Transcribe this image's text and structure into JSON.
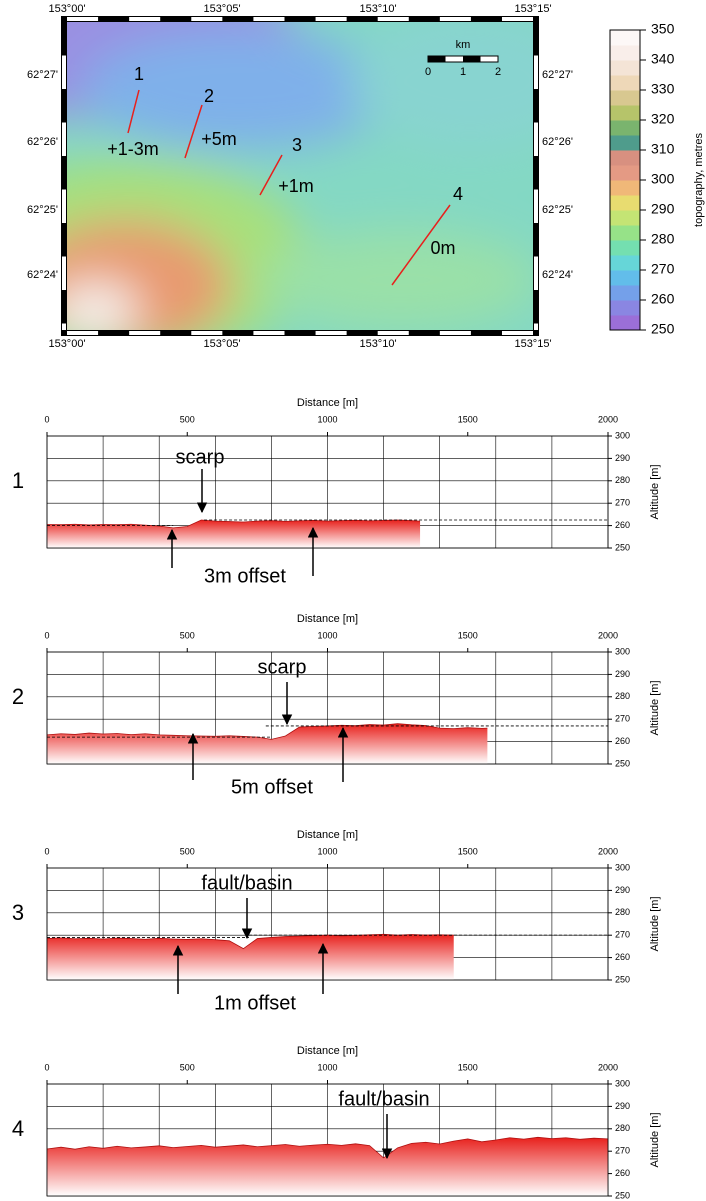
{
  "map": {
    "lon_ticks": [
      "153°00'",
      "153°05'",
      "153°10'",
      "153°15'"
    ],
    "lat_ticks": [
      "62°27'",
      "62°26'",
      "62°25'",
      "62°24'"
    ],
    "profiles": [
      {
        "label": "1",
        "offset": "+1-3m"
      },
      {
        "label": "2",
        "offset": "+5m"
      },
      {
        "label": "3",
        "offset": "+1m"
      },
      {
        "label": "4",
        "offset": "0m"
      }
    ],
    "scale_bar": {
      "unit": "km",
      "ticks": [
        "0",
        "1",
        "2"
      ]
    },
    "colorbar": {
      "label": "topography, metres",
      "lim": [
        250,
        350
      ],
      "ticks": [
        250,
        260,
        270,
        280,
        290,
        300,
        310,
        320,
        330,
        340,
        350
      ],
      "colormap": [
        "#9b6fd8",
        "#8a86e2",
        "#74a0ea",
        "#62bdea",
        "#66d6d8",
        "#74dfb0",
        "#96e288",
        "#c4e474",
        "#e8dc70",
        "#f0b878",
        "#e49a84",
        "#d89080",
        "#4f9c8c",
        "#7ab46e",
        "#b6c46a",
        "#d8c890",
        "#eed8b8",
        "#f4e4d6",
        "#f9eeea",
        "#fdf8f7"
      ]
    }
  },
  "chart_data": [
    {
      "type": "area",
      "panel": "1",
      "xlabel": "Distance [m]",
      "ylabel": "Altitude [m]",
      "color": "#e8201c",
      "xlim": [
        0,
        2000
      ],
      "ylim": [
        250,
        300
      ],
      "xticks": [
        0,
        500,
        1000,
        1500,
        2000
      ],
      "yticks": [
        250,
        260,
        270,
        280,
        290,
        300
      ],
      "xgrid": [
        0,
        200,
        400,
        600,
        800,
        1000,
        1200,
        1400,
        1600,
        1800,
        2000
      ],
      "x": [
        0,
        50,
        100,
        150,
        200,
        250,
        300,
        350,
        400,
        450,
        500,
        550,
        600,
        650,
        700,
        750,
        800,
        850,
        900,
        950,
        1000,
        1050,
        1100,
        1150,
        1200,
        1250,
        1300,
        1330
      ],
      "values": [
        260.5,
        260.4,
        260.6,
        260.3,
        260.5,
        260.4,
        260.6,
        260.2,
        259.8,
        259.0,
        259.6,
        262.5,
        262.0,
        261.8,
        261.6,
        262.0,
        262.2,
        261.9,
        262.1,
        262.3,
        262.0,
        262.2,
        262.4,
        262.1,
        262.3,
        262.5,
        262.2,
        262.0
      ],
      "reference_lines": [
        {
          "x": [
            0,
            450
          ],
          "y": 260
        },
        {
          "x": [
            560,
            2000
          ],
          "y": 262.5
        }
      ],
      "annotations": [
        "scarp",
        "3m offset"
      ]
    },
    {
      "type": "area",
      "panel": "2",
      "xlabel": "Distance [m]",
      "ylabel": "Altitude [m]",
      "color": "#e8201c",
      "xlim": [
        0,
        2000
      ],
      "ylim": [
        250,
        300
      ],
      "xticks": [
        0,
        500,
        1000,
        1500,
        2000
      ],
      "yticks": [
        250,
        260,
        270,
        280,
        290,
        300
      ],
      "xgrid": [
        0,
        200,
        400,
        600,
        800,
        1000,
        1200,
        1400,
        1600,
        1800,
        2000
      ],
      "x": [
        0,
        50,
        100,
        150,
        200,
        250,
        300,
        350,
        400,
        450,
        500,
        550,
        600,
        650,
        700,
        750,
        800,
        850,
        900,
        950,
        1000,
        1050,
        1100,
        1150,
        1200,
        1250,
        1300,
        1350,
        1400,
        1450,
        1500,
        1550,
        1570
      ],
      "values": [
        263.0,
        263.5,
        263.2,
        263.8,
        263.4,
        263.6,
        263.1,
        263.5,
        263.0,
        262.8,
        262.6,
        262.5,
        262.4,
        262.6,
        262.3,
        262.0,
        261.0,
        262.5,
        266.5,
        266.8,
        267.0,
        267.3,
        267.1,
        267.6,
        267.4,
        268.0,
        267.5,
        267.2,
        266.0,
        265.8,
        266.2,
        265.9,
        266.0
      ],
      "reference_lines": [
        {
          "x": [
            0,
            800
          ],
          "y": 262
        },
        {
          "x": [
            780,
            2000
          ],
          "y": 267
        }
      ],
      "annotations": [
        "scarp",
        "5m offset"
      ]
    },
    {
      "type": "area",
      "panel": "3",
      "xlabel": "Distance [m]",
      "ylabel": "Altitude [m]",
      "color": "#e8201c",
      "xlim": [
        0,
        2000
      ],
      "ylim": [
        250,
        300
      ],
      "xticks": [
        0,
        500,
        1000,
        1500,
        2000
      ],
      "yticks": [
        250,
        260,
        270,
        280,
        290,
        300
      ],
      "xgrid": [
        0,
        200,
        400,
        600,
        800,
        1000,
        1200,
        1400,
        1600,
        1800,
        2000
      ],
      "x": [
        0,
        50,
        100,
        150,
        200,
        250,
        300,
        350,
        400,
        450,
        500,
        550,
        600,
        650,
        700,
        750,
        800,
        850,
        900,
        950,
        1000,
        1050,
        1100,
        1150,
        1200,
        1250,
        1300,
        1350,
        1400,
        1450
      ],
      "values": [
        268.5,
        268.8,
        268.4,
        268.6,
        268.3,
        268.7,
        268.5,
        268.2,
        268.6,
        268.3,
        268.1,
        268.4,
        268.0,
        267.5,
        264.0,
        268.5,
        269.0,
        269.4,
        269.6,
        269.8,
        270.0,
        269.7,
        269.9,
        270.2,
        270.4,
        270.0,
        270.3,
        270.1,
        270.2,
        270.0
      ],
      "reference_lines": [
        {
          "x": [
            0,
            720
          ],
          "y": 269
        },
        {
          "x": [
            720,
            2000
          ],
          "y": 270
        }
      ],
      "annotations": [
        "fault/basin",
        "1m offset"
      ]
    },
    {
      "type": "area",
      "panel": "4",
      "xlabel": "Distance [m]",
      "ylabel": "Altitude [m]",
      "color": "#e8201c",
      "xlim": [
        0,
        2000
      ],
      "ylim": [
        250,
        300
      ],
      "xticks": [
        0,
        500,
        1000,
        1500,
        2000
      ],
      "yticks": [
        250,
        260,
        270,
        280,
        290,
        300
      ],
      "xgrid": [
        0,
        200,
        400,
        600,
        800,
        1000,
        1200,
        1400,
        1600,
        1800,
        2000
      ],
      "x": [
        0,
        50,
        100,
        150,
        200,
        250,
        300,
        350,
        400,
        450,
        500,
        550,
        600,
        650,
        700,
        750,
        800,
        850,
        900,
        950,
        1000,
        1050,
        1100,
        1150,
        1200,
        1250,
        1300,
        1350,
        1400,
        1450,
        1500,
        1550,
        1600,
        1650,
        1700,
        1750,
        1800,
        1850,
        1900,
        1950,
        2000
      ],
      "values": [
        271.0,
        271.8,
        270.9,
        272.0,
        271.3,
        272.2,
        271.5,
        271.9,
        272.4,
        271.6,
        272.1,
        272.6,
        271.8,
        272.3,
        272.8,
        272.0,
        272.5,
        273.0,
        272.2,
        272.7,
        273.1,
        272.6,
        273.3,
        272.5,
        267.0,
        271.5,
        273.5,
        274.0,
        273.2,
        274.5,
        275.5,
        274.2,
        275.0,
        276.0,
        275.4,
        276.2,
        275.6,
        276.0,
        275.3,
        275.8,
        275.5
      ],
      "reference_lines": [],
      "annotations": [
        "fault/basin"
      ]
    }
  ]
}
